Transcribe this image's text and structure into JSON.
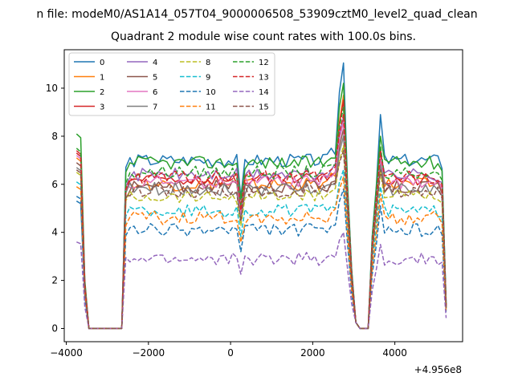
{
  "figure": {
    "suptitle": "n file: modeM0/AS1A14_057T04_9000006508_53909cztM0_level2_quad_clean"
  },
  "chart_data": {
    "type": "line",
    "title": "Quadrant 2 module wise count rates with 100.0s bins.",
    "xlabel": "",
    "ylabel": "",
    "x_offset_label": "+4.956e8",
    "xlim": [
      -4050,
      5650
    ],
    "ylim": [
      -0.55,
      11.6
    ],
    "xticks": [
      -4000,
      -2000,
      0,
      2000,
      4000
    ],
    "xtick_labels": [
      "−4000",
      "−2000",
      "0",
      "2000",
      "4000"
    ],
    "yticks": [
      0,
      2,
      4,
      6,
      8,
      10
    ],
    "ytick_labels": [
      "0",
      "2",
      "4",
      "6",
      "8",
      "10"
    ],
    "grid": false,
    "legend_position": "upper-left",
    "legend_columns": 4,
    "time_grid": {
      "start": -3750,
      "step": 100,
      "count": 91
    },
    "series": [
      {
        "name": "0",
        "color": "#1f77b4",
        "dash": false,
        "level": 7.0,
        "start": 5.3,
        "spike": 11.05,
        "hump": 8.9
      },
      {
        "name": "1",
        "color": "#ff7f0e",
        "dash": false,
        "level": 6.0,
        "start": 7.1,
        "spike": 9.7,
        "hump": 7.0
      },
      {
        "name": "2",
        "color": "#2ca02c",
        "dash": false,
        "level": 6.9,
        "start": 8.1,
        "spike": 10.2,
        "hump": 8.0
      },
      {
        "name": "3",
        "color": "#d62728",
        "dash": false,
        "level": 6.2,
        "start": 7.4,
        "spike": 9.5,
        "hump": 7.5
      },
      {
        "name": "4",
        "color": "#9467bd",
        "dash": false,
        "level": 6.4,
        "start": 7.3,
        "spike": 8.8,
        "hump": 7.3
      },
      {
        "name": "5",
        "color": "#8c564b",
        "dash": false,
        "level": 5.9,
        "start": 6.9,
        "spike": 8.3,
        "hump": 6.9
      },
      {
        "name": "6",
        "color": "#e377c2",
        "dash": false,
        "level": 6.1,
        "start": 7.2,
        "spike": 8.6,
        "hump": 7.1
      },
      {
        "name": "7",
        "color": "#7f7f7f",
        "dash": false,
        "level": 5.8,
        "start": 6.7,
        "spike": 8.0,
        "hump": 6.8
      },
      {
        "name": "8",
        "color": "#bcbd22",
        "dash": true,
        "level": 5.5,
        "start": 6.5,
        "spike": 7.6,
        "hump": 6.5
      },
      {
        "name": "9",
        "color": "#17becf",
        "dash": true,
        "level": 4.9,
        "start": 6.1,
        "spike": 6.6,
        "hump": 5.9
      },
      {
        "name": "10",
        "color": "#1f77b4",
        "dash": true,
        "level": 4.1,
        "start": 5.5,
        "spike": 5.8,
        "hump": 5.1
      },
      {
        "name": "11",
        "color": "#ff7f0e",
        "dash": true,
        "level": 4.6,
        "start": 5.9,
        "spike": 6.3,
        "hump": 5.6
      },
      {
        "name": "12",
        "color": "#2ca02c",
        "dash": true,
        "level": 6.5,
        "start": 7.5,
        "spike": 9.2,
        "hump": 7.6
      },
      {
        "name": "13",
        "color": "#d62728",
        "dash": true,
        "level": 6.3,
        "start": 7.3,
        "spike": 8.9,
        "hump": 7.3
      },
      {
        "name": "14",
        "color": "#9467bd",
        "dash": true,
        "level": 2.9,
        "start": 3.6,
        "spike": 4.0,
        "hump": 3.5
      },
      {
        "name": "15",
        "color": "#8c564b",
        "dash": true,
        "level": 5.7,
        "start": 6.6,
        "spike": 7.4,
        "hump": 6.6
      }
    ]
  }
}
